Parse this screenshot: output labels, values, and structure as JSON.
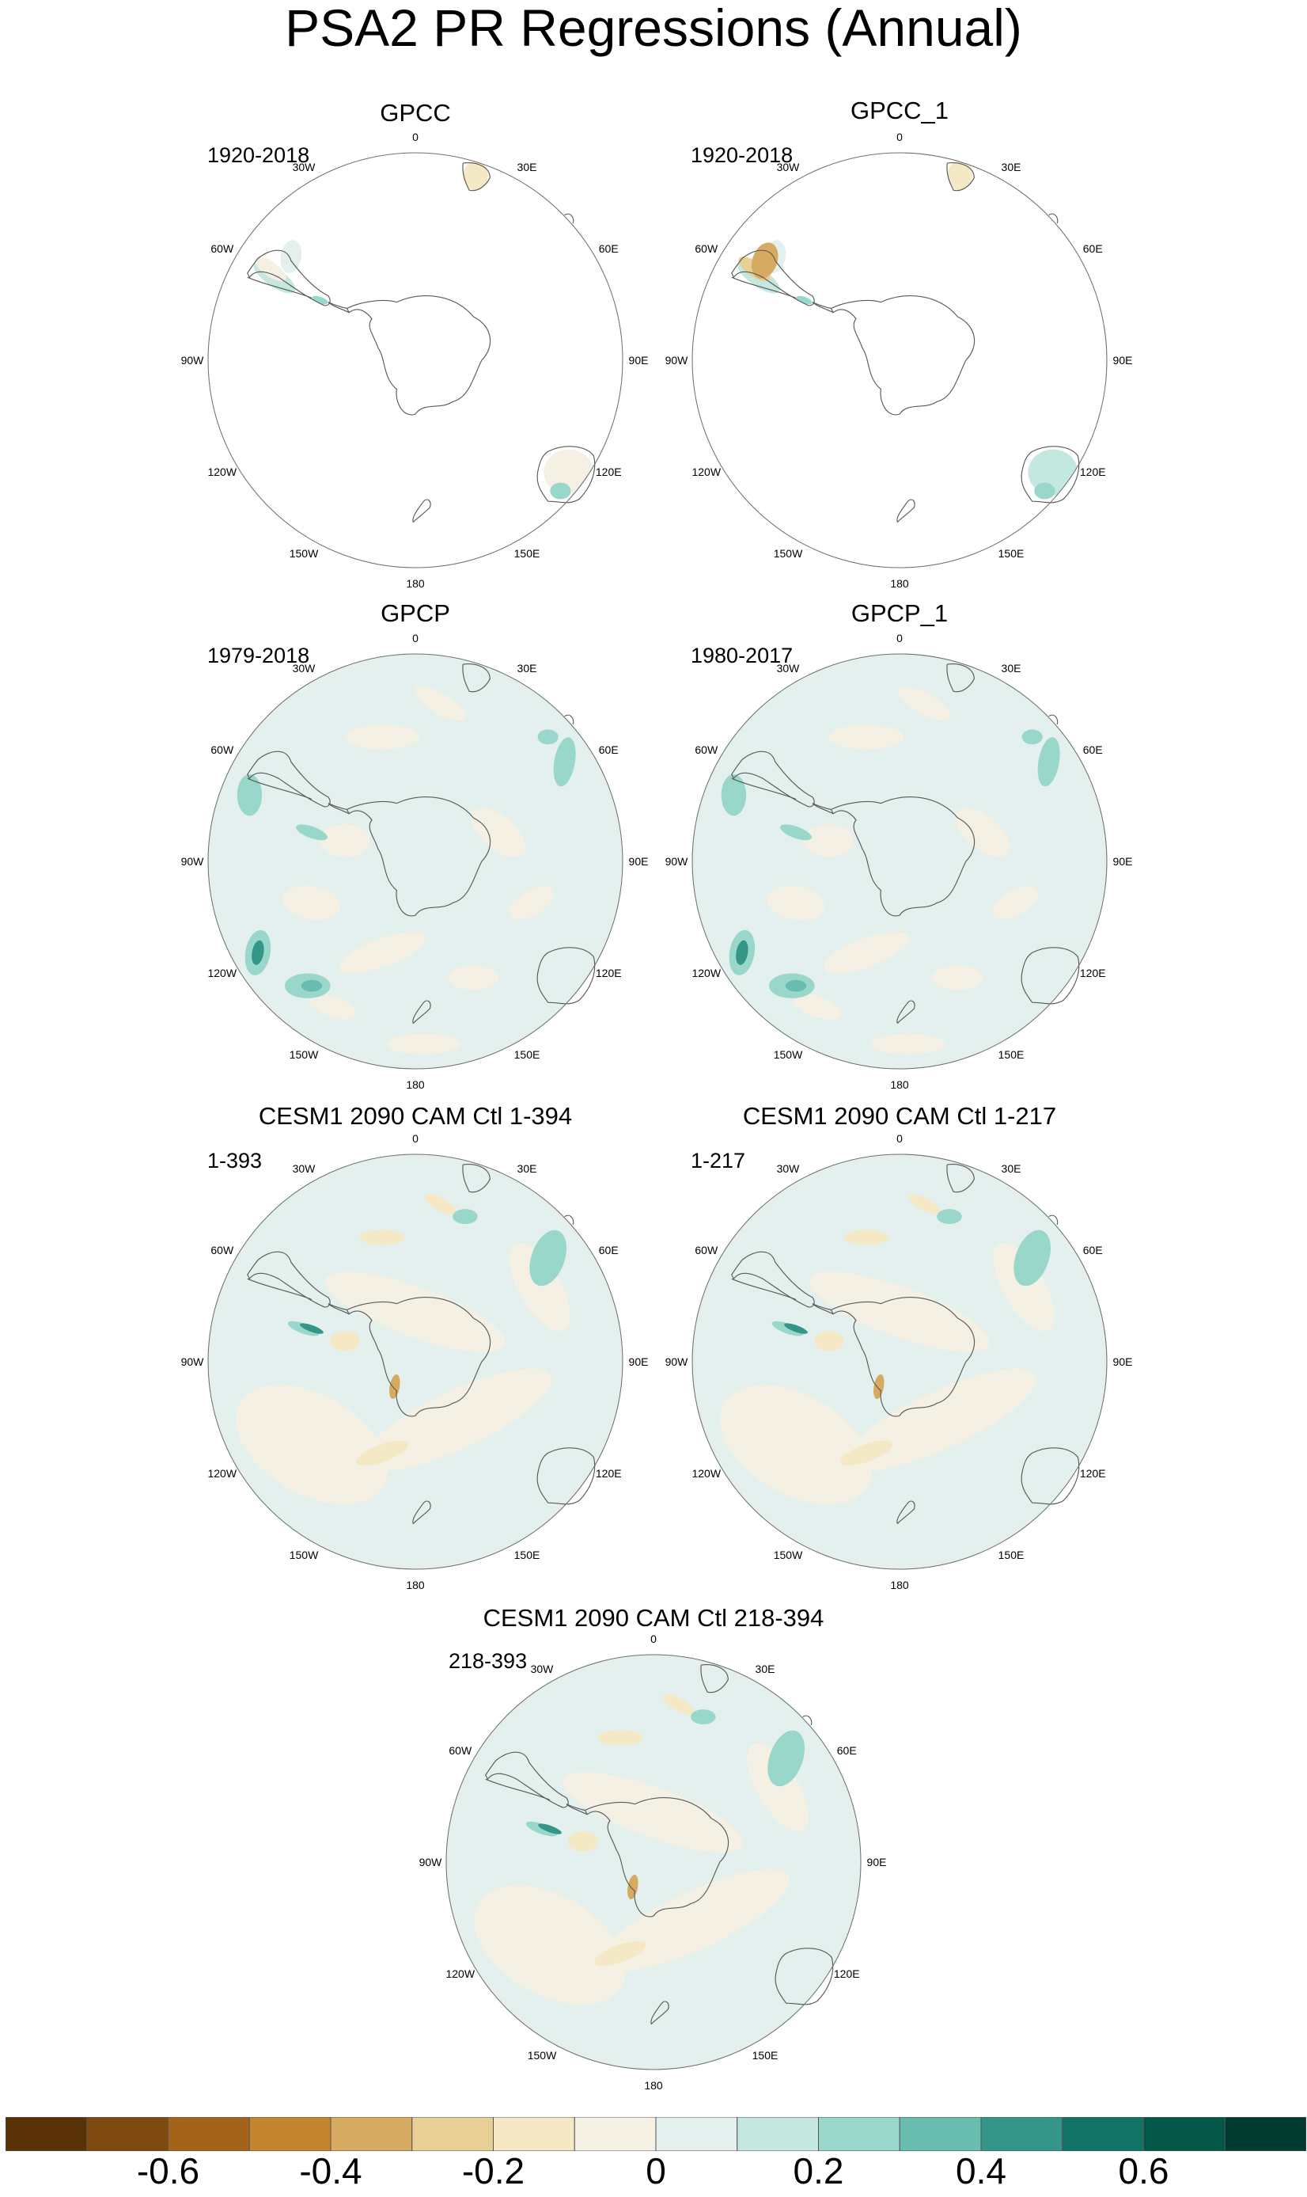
{
  "title": "PSA2 PR Regressions (Annual)",
  "degree_labels": [
    "0",
    "30E",
    "60E",
    "90E",
    "120E",
    "150E",
    "180",
    "150W",
    "120W",
    "90W",
    "60W",
    "30W"
  ],
  "panels": [
    {
      "title": "GPCC",
      "period": "1920-2018",
      "field": "land_only"
    },
    {
      "title": "GPCC_1",
      "period": "1920-2018",
      "field": "land_only_strong"
    },
    {
      "title": "GPCP",
      "period": "1979-2018",
      "field": "global_gpcp"
    },
    {
      "title": "GPCP_1",
      "period": "1980-2017",
      "field": "global_gpcp"
    },
    {
      "title": "CESM1 2090 CAM Ctl 1-394",
      "period": "1-393",
      "field": "model"
    },
    {
      "title": "CESM1 2090 CAM Ctl 1-217",
      "period": "1-217",
      "field": "model"
    },
    {
      "title": "CESM1 2090 CAM Ctl 218-394",
      "period": "218-393",
      "field": "model"
    }
  ],
  "colorbar": {
    "colors": [
      "#5a3208",
      "#7f4a10",
      "#a3641a",
      "#c3852e",
      "#d6aa60",
      "#e8cf94",
      "#f5e8c4",
      "#f4f0e4",
      "#e3f0ed",
      "#c4e7df",
      "#98d7ca",
      "#68bdaf",
      "#339689",
      "#117363",
      "#045747",
      "#013b2f"
    ],
    "labels": [
      "-0.6",
      "-0.4",
      "-0.2",
      "0",
      "0.2",
      "0.4",
      "0.6"
    ]
  }
}
